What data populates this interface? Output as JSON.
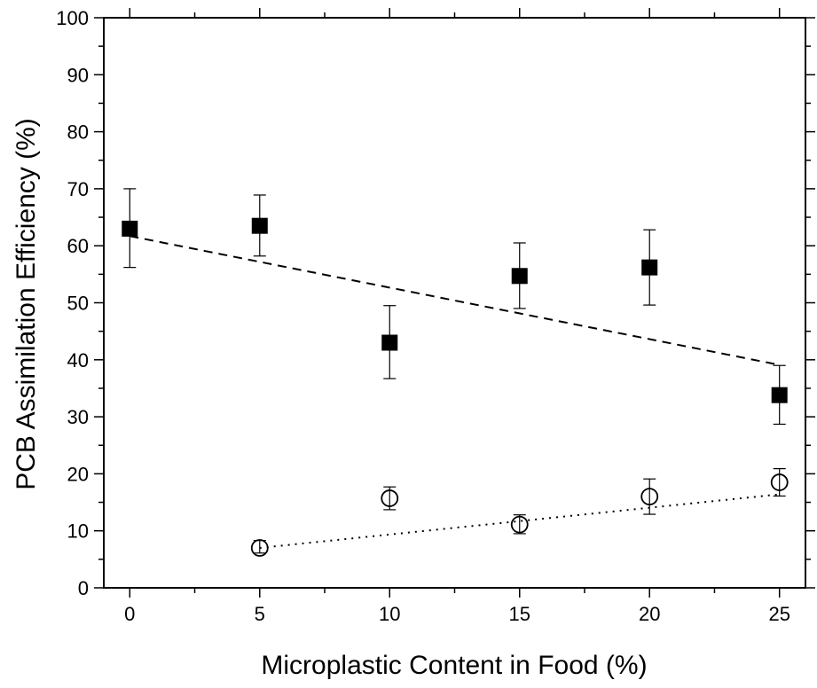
{
  "chart_data": {
    "type": "scatter",
    "xlabel": "Microplastic Content in Food (%)",
    "ylabel": "PCB Assimilation Efficiency (%)",
    "xlim": [
      -1,
      26
    ],
    "ylim": [
      0,
      100
    ],
    "x_ticks": [
      0,
      5,
      10,
      15,
      20,
      25
    ],
    "y_ticks": [
      0,
      10,
      20,
      30,
      40,
      50,
      60,
      70,
      80,
      90,
      100
    ],
    "x_minor_step": 2.5,
    "y_minor_step": 5,
    "grid": false,
    "legend": "none",
    "series": [
      {
        "marker": "filled-square",
        "color": "#000000",
        "x": [
          0,
          5,
          10,
          15,
          20,
          25
        ],
        "y": [
          63.0,
          63.5,
          43.0,
          54.7,
          56.2,
          33.8
        ],
        "err_low": [
          56.2,
          58.2,
          36.7,
          49.0,
          49.6,
          28.7
        ],
        "err_high": [
          70.0,
          68.9,
          49.5,
          60.5,
          62.8,
          39.0
        ],
        "fit": {
          "style": "dashed",
          "x": [
            0,
            25
          ],
          "y": [
            61.7,
            39.1
          ]
        }
      },
      {
        "marker": "open-circle",
        "color": "#000000",
        "x": [
          5,
          10,
          15,
          20,
          25
        ],
        "y": [
          7.0,
          15.7,
          11.1,
          16.0,
          18.5
        ],
        "err_low": [
          6.1,
          13.7,
          9.5,
          12.9,
          16.1
        ],
        "err_high": [
          8.3,
          17.7,
          12.8,
          19.1,
          20.9
        ],
        "fit": {
          "style": "dotted",
          "x": [
            5,
            25
          ],
          "y": [
            7.0,
            16.4
          ]
        }
      }
    ]
  }
}
